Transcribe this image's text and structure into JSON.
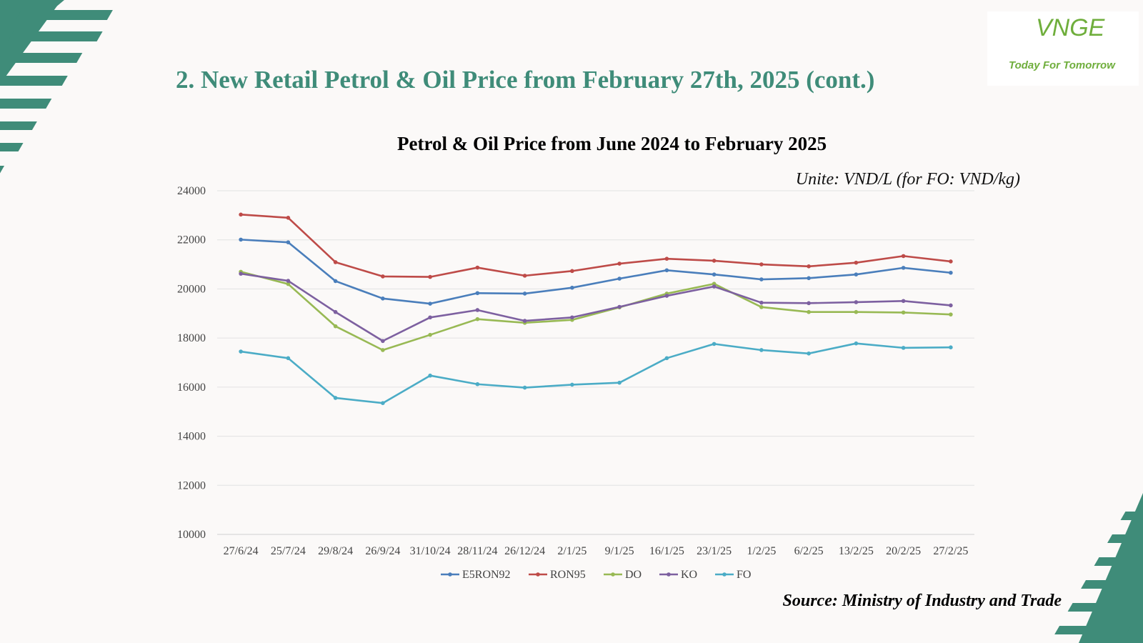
{
  "slide": {
    "title": "2. New Retail Petrol & Oil Price from February 27th, 2025 (cont.)",
    "unit_note": "Unite: VND/L (for FO: VND/kg)",
    "source": "Source: Ministry of Industry and Trade",
    "accent_color": "#3f8c79"
  },
  "logo": {
    "mark": "VNGE",
    "tagline": "Today For Tomorrow",
    "color": "#6fae3c"
  },
  "chart_data": {
    "type": "line",
    "title": "Petrol & Oil Price from June 2024 to February 2025",
    "xlabel": "",
    "ylabel": "",
    "categories": [
      "27/6/24",
      "25/7/24",
      "29/8/24",
      "26/9/24",
      "31/10/24",
      "28/11/24",
      "26/12/24",
      "2/1/25",
      "9/1/25",
      "16/1/25",
      "23/1/25",
      "1/2/25",
      "6/2/25",
      "13/2/25",
      "20/2/25",
      "27/2/25"
    ],
    "ylim": [
      10000,
      24000
    ],
    "yticks": [
      10000,
      12000,
      14000,
      16000,
      18000,
      20000,
      22000,
      24000
    ],
    "grid": true,
    "legend_position": "bottom",
    "series": [
      {
        "name": "E5RON92",
        "color": "#4a7ebb",
        "values": [
          22010,
          21900,
          20320,
          19610,
          19400,
          19830,
          19810,
          20050,
          20420,
          20760,
          20590,
          20390,
          20440,
          20590,
          20860,
          20660
        ]
      },
      {
        "name": "RON95",
        "color": "#be4b48",
        "values": [
          23030,
          22900,
          21090,
          20510,
          20490,
          20870,
          20540,
          20730,
          21030,
          21230,
          21150,
          21000,
          20920,
          21070,
          21340,
          21120
        ]
      },
      {
        "name": "DO",
        "color": "#98b954",
        "values": [
          20700,
          20200,
          18480,
          17510,
          18130,
          18770,
          18620,
          18740,
          19250,
          19810,
          20210,
          19260,
          19060,
          19060,
          19040,
          18960
        ]
      },
      {
        "name": "KO",
        "color": "#7d60a0",
        "values": [
          20620,
          20330,
          19060,
          17880,
          18840,
          19140,
          18700,
          18840,
          19270,
          19720,
          20100,
          19440,
          19420,
          19460,
          19510,
          19330
        ]
      },
      {
        "name": "FO",
        "color": "#4bacc6",
        "values": [
          17450,
          17180,
          15560,
          15350,
          16470,
          16120,
          15980,
          16100,
          16180,
          17180,
          17760,
          17510,
          17370,
          17780,
          17600,
          17620
        ]
      }
    ]
  }
}
